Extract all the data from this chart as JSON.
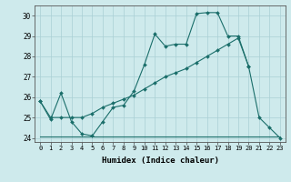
{
  "xlabel": "Humidex (Indice chaleur)",
  "bg_color": "#ceeaec",
  "grid_color": "#aacfd4",
  "line_color": "#1a6e6a",
  "xlim": [
    -0.5,
    23.5
  ],
  "ylim": [
    23.8,
    30.5
  ],
  "yticks": [
    24,
    25,
    26,
    27,
    28,
    29,
    30
  ],
  "xticks": [
    0,
    1,
    2,
    3,
    4,
    5,
    6,
    7,
    8,
    9,
    10,
    11,
    12,
    13,
    14,
    15,
    16,
    17,
    18,
    19,
    20,
    21,
    22,
    23
  ],
  "line1_x": [
    0,
    1,
    2,
    3,
    4,
    5,
    6,
    7,
    8,
    9,
    10,
    11,
    12,
    13,
    14,
    15,
    16,
    17,
    18,
    19,
    20,
    21,
    22,
    23
  ],
  "line1_y": [
    25.8,
    24.9,
    26.2,
    24.8,
    24.2,
    24.1,
    24.8,
    25.5,
    25.6,
    26.3,
    27.6,
    29.1,
    28.5,
    28.6,
    28.6,
    30.1,
    30.15,
    30.15,
    29.0,
    29.0,
    27.5,
    25.0,
    24.5,
    24.0
  ],
  "line2_x": [
    0,
    1,
    2,
    3,
    4,
    5,
    6,
    7,
    8,
    9,
    10,
    11,
    12,
    13,
    14,
    15,
    16,
    17,
    18,
    19,
    20
  ],
  "line2_y": [
    25.8,
    25.0,
    25.0,
    25.0,
    25.0,
    25.2,
    25.5,
    25.7,
    25.9,
    26.1,
    26.4,
    26.7,
    27.0,
    27.2,
    27.4,
    27.7,
    28.0,
    28.3,
    28.6,
    28.9,
    27.5
  ],
  "line3_x": [
    0,
    5,
    18,
    23
  ],
  "line3_y": [
    24.05,
    24.05,
    24.05,
    24.05
  ]
}
